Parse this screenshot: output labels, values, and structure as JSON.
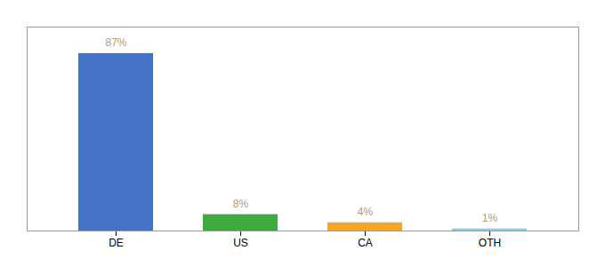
{
  "chart_data": {
    "type": "bar",
    "categories": [
      "DE",
      "US",
      "CA",
      "OTH"
    ],
    "values": [
      87,
      8,
      4,
      1
    ],
    "value_labels": [
      "87%",
      "8%",
      "4%",
      "1%"
    ],
    "colors": [
      "#4472c4",
      "#3dab3d",
      "#f5a623",
      "#87ceeb"
    ],
    "ylim": [
      0,
      100
    ],
    "data_labels": true,
    "tick_labels": "x",
    "grid": false
  }
}
